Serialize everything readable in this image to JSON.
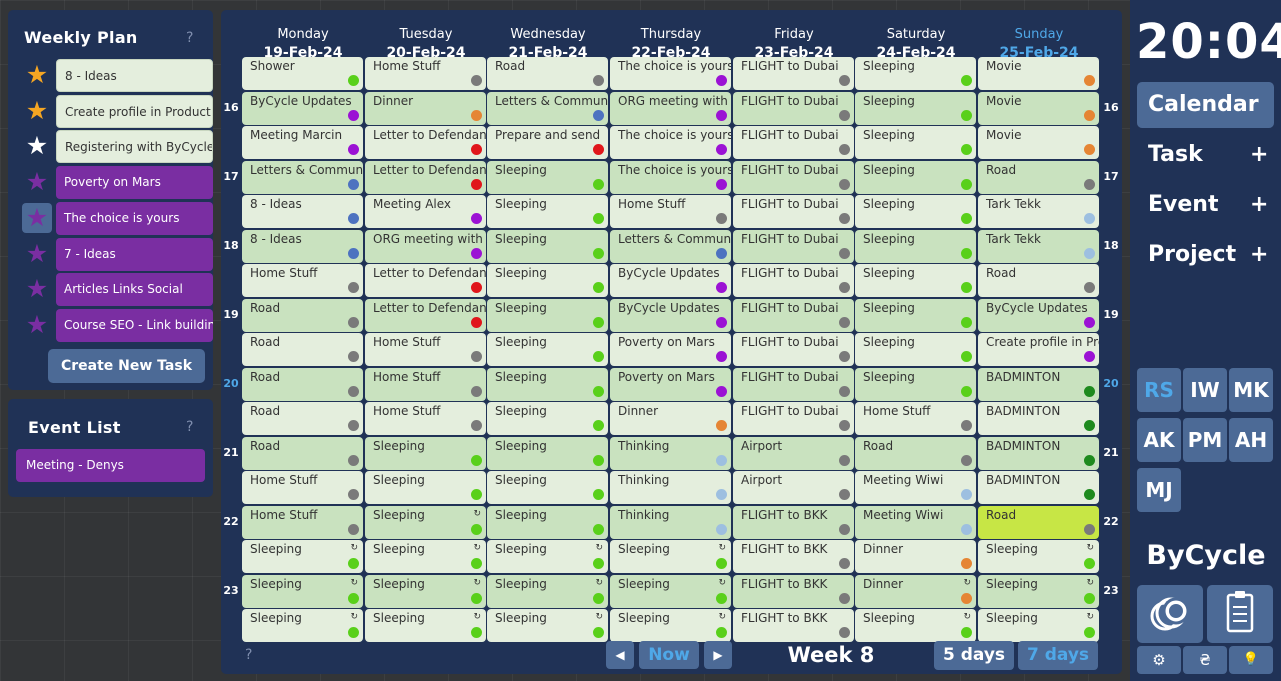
{
  "colors": {
    "accent": "#4fa8e8",
    "panel": "#203256",
    "button": "#4c6a96",
    "purple": "#7a2ea2",
    "cell_light": "#e4eedd",
    "cell_green": "#c9e2bf",
    "highlight": "#c7e645",
    "dot_green": "#59d01a",
    "dot_purple": "#9b12d4",
    "dot_gray": "#7a7a7a",
    "dot_orange": "#e58534",
    "dot_blue": "#4d72c0",
    "dot_red": "#e0161b",
    "dot_lightblue": "#9dbfe0",
    "dot_darkgreen": "#1e8a1e"
  },
  "weekly_plan": {
    "title": "Weekly Plan",
    "help": "?",
    "create_label": "Create New Task",
    "tasks": [
      {
        "label": "8 - Ideas",
        "star": "gold",
        "style": "light"
      },
      {
        "label": "Create profile in Product",
        "star": "gold",
        "style": "light"
      },
      {
        "label": "Registering with ByCycle",
        "star": "white",
        "style": "light"
      },
      {
        "label": "Poverty on Mars",
        "star": "purple",
        "style": "purple"
      },
      {
        "label": "The choice is yours",
        "star": "purple",
        "style": "purple",
        "selected": true
      },
      {
        "label": "7 - Ideas",
        "star": "purple",
        "style": "purple"
      },
      {
        "label": "Articles Links Social",
        "star": "purple",
        "style": "purple"
      },
      {
        "label": "Course SEO - Link building",
        "star": "purple",
        "style": "purple"
      }
    ]
  },
  "event_list": {
    "title": "Event List",
    "help": "?",
    "events": [
      "Meeting - Denys"
    ]
  },
  "calendar": {
    "days": [
      {
        "name": "Monday",
        "date": "19-Feb-24"
      },
      {
        "name": "Tuesday",
        "date": "20-Feb-24"
      },
      {
        "name": "Wednesday",
        "date": "21-Feb-24"
      },
      {
        "name": "Thursday",
        "date": "22-Feb-24"
      },
      {
        "name": "Friday",
        "date": "23-Feb-24"
      },
      {
        "name": "Saturday",
        "date": "24-Feb-24"
      },
      {
        "name": "Sunday",
        "date": "25-Feb-24",
        "today": true
      }
    ],
    "hours": [
      {
        "label": "16",
        "row": 1
      },
      {
        "label": "17",
        "row": 3
      },
      {
        "label": "18",
        "row": 5
      },
      {
        "label": "19",
        "row": 7
      },
      {
        "label": "20",
        "row": 9,
        "current": true
      },
      {
        "label": "21",
        "row": 11
      },
      {
        "label": "22",
        "row": 13
      },
      {
        "label": "23",
        "row": 15
      }
    ],
    "repeat_symbol": "↻",
    "rows": [
      [
        [
          "Shower",
          "g"
        ],
        [
          "Home Stuff",
          "gr"
        ],
        [
          "Road",
          "gr"
        ],
        [
          "The choice is yours",
          "p"
        ],
        [
          "FLIGHT to Dubai",
          "gr"
        ],
        [
          "Sleeping",
          "g"
        ],
        [
          "Movie",
          "o"
        ]
      ],
      [
        [
          "ByCycle Updates",
          "p"
        ],
        [
          "Dinner",
          "o"
        ],
        [
          "Letters & Communication",
          "b"
        ],
        [
          "ORG meeting with",
          "p"
        ],
        [
          "FLIGHT to Dubai",
          "gr"
        ],
        [
          "Sleeping",
          "g"
        ],
        [
          "Movie",
          "o"
        ]
      ],
      [
        [
          "Meeting Marcin",
          "p"
        ],
        [
          "Letter to Defendant",
          "r"
        ],
        [
          "Prepare and send",
          "r"
        ],
        [
          "The choice is yours",
          "p"
        ],
        [
          "FLIGHT to Dubai",
          "gr"
        ],
        [
          "Sleeping",
          "g"
        ],
        [
          "Movie",
          "o"
        ]
      ],
      [
        [
          "Letters & Communication",
          "b"
        ],
        [
          "Letter to Defendant",
          "r"
        ],
        [
          "Sleeping",
          "g"
        ],
        [
          "The choice is yours",
          "p"
        ],
        [
          "FLIGHT to Dubai",
          "gr"
        ],
        [
          "Sleeping",
          "g"
        ],
        [
          "Road",
          "gr"
        ]
      ],
      [
        [
          "8 - Ideas",
          "b"
        ],
        [
          "Meeting Alex",
          "p"
        ],
        [
          "Sleeping",
          "g"
        ],
        [
          "Home Stuff",
          "gr"
        ],
        [
          "FLIGHT to Dubai",
          "gr"
        ],
        [
          "Sleeping",
          "g"
        ],
        [
          "Tark Tekk",
          "lb"
        ]
      ],
      [
        [
          "8 - Ideas",
          "b"
        ],
        [
          "ORG meeting with",
          "p"
        ],
        [
          "Sleeping",
          "g"
        ],
        [
          "Letters & Communication",
          "b"
        ],
        [
          "FLIGHT to Dubai",
          "gr"
        ],
        [
          "Sleeping",
          "g"
        ],
        [
          "Tark Tekk",
          "lb"
        ]
      ],
      [
        [
          "Home Stuff",
          "gr"
        ],
        [
          "Letter to Defendant",
          "r"
        ],
        [
          "Sleeping",
          "g"
        ],
        [
          "ByCycle Updates",
          "p"
        ],
        [
          "FLIGHT to Dubai",
          "gr"
        ],
        [
          "Sleeping",
          "g"
        ],
        [
          "Road",
          "gr"
        ]
      ],
      [
        [
          "Road",
          "gr"
        ],
        [
          "Letter to Defendant",
          "r"
        ],
        [
          "Sleeping",
          "g"
        ],
        [
          "ByCycle Updates",
          "p"
        ],
        [
          "FLIGHT to Dubai",
          "gr"
        ],
        [
          "Sleeping",
          "g"
        ],
        [
          "ByCycle Updates",
          "p"
        ]
      ],
      [
        [
          "Road",
          "gr"
        ],
        [
          "Home Stuff",
          "gr"
        ],
        [
          "Sleeping",
          "g"
        ],
        [
          "Poverty on Mars",
          "p"
        ],
        [
          "FLIGHT to Dubai",
          "gr"
        ],
        [
          "Sleeping",
          "g"
        ],
        [
          "Create profile in Product",
          "p"
        ]
      ],
      [
        [
          "Road",
          "gr"
        ],
        [
          "Home Stuff",
          "gr"
        ],
        [
          "Sleeping",
          "g"
        ],
        [
          "Poverty on Mars",
          "p"
        ],
        [
          "FLIGHT to Dubai",
          "gr"
        ],
        [
          "Sleeping",
          "g"
        ],
        [
          "BADMINTON",
          "dg"
        ]
      ],
      [
        [
          "Road",
          "gr"
        ],
        [
          "Home Stuff",
          "gr"
        ],
        [
          "Sleeping",
          "g"
        ],
        [
          "Dinner",
          "o"
        ],
        [
          "FLIGHT to Dubai",
          "gr"
        ],
        [
          "Home Stuff",
          "gr"
        ],
        [
          "BADMINTON",
          "dg"
        ]
      ],
      [
        [
          "Road",
          "gr"
        ],
        [
          "Sleeping",
          "g"
        ],
        [
          "Sleeping",
          "g"
        ],
        [
          "Thinking",
          "lb"
        ],
        [
          "Airport",
          "gr"
        ],
        [
          "Road",
          "gr"
        ],
        [
          "BADMINTON",
          "dg"
        ]
      ],
      [
        [
          "Home Stuff",
          "gr"
        ],
        [
          "Sleeping",
          "g"
        ],
        [
          "Sleeping",
          "g"
        ],
        [
          "Thinking",
          "lb"
        ],
        [
          "Airport",
          "gr"
        ],
        [
          "Meeting Wiwi",
          "lb"
        ],
        [
          "BADMINTON",
          "dg"
        ]
      ],
      [
        [
          "Home Stuff",
          "gr"
        ],
        [
          "Sleeping",
          "g",
          "r"
        ],
        [
          "Sleeping",
          "g"
        ],
        [
          "Thinking",
          "lb"
        ],
        [
          "FLIGHT to BKK",
          "gr"
        ],
        [
          "Meeting Wiwi",
          "lb"
        ],
        [
          "Road",
          "gr",
          "",
          "hl"
        ]
      ],
      [
        [
          "Sleeping",
          "g",
          "r"
        ],
        [
          "Sleeping",
          "g",
          "r"
        ],
        [
          "Sleeping",
          "g",
          "r"
        ],
        [
          "Sleeping",
          "g",
          "r"
        ],
        [
          "FLIGHT to BKK",
          "gr"
        ],
        [
          "Dinner",
          "o"
        ],
        [
          "Sleeping",
          "g",
          "r"
        ]
      ],
      [
        [
          "Sleeping",
          "g",
          "r"
        ],
        [
          "Sleeping",
          "g",
          "r"
        ],
        [
          "Sleeping",
          "g",
          "r"
        ],
        [
          "Sleeping",
          "g",
          "r"
        ],
        [
          "FLIGHT to BKK",
          "gr"
        ],
        [
          "Dinner",
          "o",
          "r"
        ],
        [
          "Sleeping",
          "g",
          "r"
        ]
      ],
      [
        [
          "Sleeping",
          "g",
          "r"
        ],
        [
          "Sleeping",
          "g",
          "r"
        ],
        [
          "Sleeping",
          "g",
          "r"
        ],
        [
          "Sleeping",
          "g",
          "r"
        ],
        [
          "FLIGHT to BKK",
          "gr"
        ],
        [
          "Sleeping",
          "g",
          "r"
        ],
        [
          "Sleeping",
          "g",
          "r"
        ]
      ]
    ],
    "help": "?",
    "nav": {
      "prev": "◀",
      "now": "Now",
      "next": "▶",
      "week_label": "Week 8",
      "five_days": "5 days",
      "seven_days": "7 days"
    }
  },
  "right": {
    "clock": "20:04",
    "menu": [
      {
        "label": "Calendar",
        "active": true
      },
      {
        "label": "Task",
        "plus": "+"
      },
      {
        "label": "Event",
        "plus": "+"
      },
      {
        "label": "Project",
        "plus": "+"
      }
    ],
    "avatars": [
      {
        "label": "RS",
        "active": true
      },
      {
        "label": "IW"
      },
      {
        "label": "MK"
      },
      {
        "label": "AK"
      },
      {
        "label": "PM"
      },
      {
        "label": "AH"
      },
      {
        "label": "MJ"
      }
    ],
    "brand": "ByCycle",
    "small_icons": [
      "gear-icon",
      "currency-icon",
      "bulb-icon"
    ],
    "small_glyphs": [
      "⚙",
      "₴",
      "💡"
    ]
  }
}
